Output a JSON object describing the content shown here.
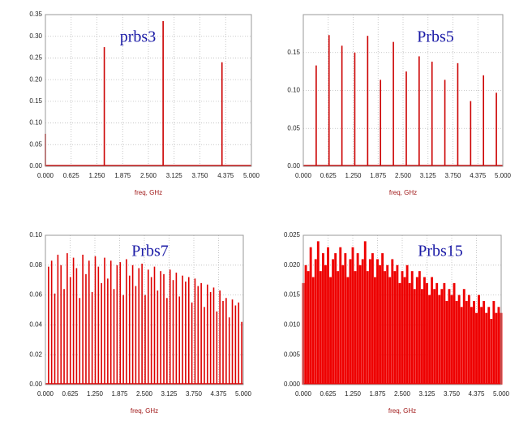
{
  "chart_data": [
    {
      "type": "line",
      "annotation": "prbs3",
      "x_label": "freq, GHz",
      "color": "#cc0000",
      "grid": true,
      "x": [
        0,
        1.429,
        2.857,
        4.286
      ],
      "values": [
        0.075,
        0.275,
        0.335,
        0.24
      ],
      "xlim": [
        0,
        5
      ],
      "ylim": [
        0,
        0.35
      ],
      "xticks": [
        {
          "value": 0,
          "label": "0.000"
        },
        0.625,
        {
          "value": 1.25,
          "label": "1.250"
        },
        1.875,
        {
          "value": 2.5,
          "label": "2.500"
        },
        3.125,
        {
          "value": 3.75,
          "label": "3.750"
        },
        4.375,
        {
          "value": 5,
          "label": "5.000"
        }
      ],
      "yticks": [
        {
          "value": 0,
          "label": "0.00"
        },
        0.05,
        {
          "value": 0.1,
          "label": "0.10"
        },
        0.15,
        {
          "value": 0.2,
          "label": "0.20"
        },
        0.25,
        {
          "value": 0.3,
          "label": "0.30"
        },
        0.35
      ]
    },
    {
      "type": "line",
      "annotation": "Prbs5",
      "x_label": "freq, GHz",
      "color": "#cc0000",
      "grid": true,
      "x": [
        0.323,
        0.645,
        0.968,
        1.29,
        1.613,
        1.935,
        2.258,
        2.581,
        2.903,
        3.226,
        3.548,
        3.871,
        4.194,
        4.516,
        4.839
      ],
      "values": [
        0.133,
        0.173,
        0.159,
        0.15,
        0.172,
        0.114,
        0.164,
        0.125,
        0.145,
        0.138,
        0.114,
        0.136,
        0.086,
        0.12,
        0.097
      ],
      "xlim": [
        0,
        5
      ],
      "ylim": [
        0,
        0.2
      ],
      "xticks": [
        {
          "value": 0,
          "label": "0.000"
        },
        0.625,
        {
          "value": 1.25,
          "label": "1.250"
        },
        1.875,
        {
          "value": 2.5,
          "label": "2.500"
        },
        3.125,
        {
          "value": 3.75,
          "label": "3.750"
        },
        4.375,
        {
          "value": 5,
          "label": "5.000"
        }
      ],
      "yticks": [
        {
          "value": 0,
          "label": "0.00"
        },
        0.05,
        {
          "value": 0.1,
          "label": "0.10"
        },
        0.15
      ]
    },
    {
      "type": "line",
      "annotation": "Prbs7",
      "x_label": "freq, GHz",
      "color": "#dd0000",
      "grid": true,
      "x": [
        0.079,
        0.157,
        0.236,
        0.315,
        0.394,
        0.472,
        0.551,
        0.63,
        0.709,
        0.787,
        0.866,
        0.945,
        1.024,
        1.102,
        1.181,
        1.26,
        1.339,
        1.417,
        1.496,
        1.575,
        1.654,
        1.732,
        1.811,
        1.89,
        1.969,
        2.047,
        2.126,
        2.205,
        2.283,
        2.362,
        2.441,
        2.52,
        2.598,
        2.677,
        2.756,
        2.835,
        2.913,
        2.992,
        3.071,
        3.15,
        3.228,
        3.307,
        3.386,
        3.465,
        3.543,
        3.622,
        3.701,
        3.78,
        3.858,
        3.937,
        4.016,
        4.094,
        4.173,
        4.252,
        4.331,
        4.409,
        4.488,
        4.567,
        4.646,
        4.724,
        4.803,
        4.882,
        4.961
      ],
      "values": [
        0.079,
        0.083,
        0.061,
        0.087,
        0.08,
        0.064,
        0.088,
        0.072,
        0.085,
        0.078,
        0.058,
        0.087,
        0.074,
        0.083,
        0.062,
        0.086,
        0.079,
        0.068,
        0.085,
        0.071,
        0.083,
        0.064,
        0.08,
        0.082,
        0.06,
        0.084,
        0.073,
        0.08,
        0.066,
        0.078,
        0.081,
        0.06,
        0.077,
        0.072,
        0.079,
        0.063,
        0.076,
        0.074,
        0.058,
        0.077,
        0.07,
        0.075,
        0.059,
        0.073,
        0.069,
        0.072,
        0.055,
        0.071,
        0.066,
        0.068,
        0.052,
        0.067,
        0.062,
        0.065,
        0.049,
        0.063,
        0.056,
        0.058,
        0.045,
        0.057,
        0.053,
        0.055,
        0.042
      ],
      "xlim": [
        0,
        5
      ],
      "ylim": [
        0,
        0.1
      ],
      "xticks": [
        {
          "value": 0,
          "label": "0.000"
        },
        0.625,
        {
          "value": 1.25,
          "label": "1.250"
        },
        1.875,
        {
          "value": 2.5,
          "label": "2.500"
        },
        3.125,
        {
          "value": 3.75,
          "label": "3.750"
        },
        4.375,
        {
          "value": 5,
          "label": "5.000"
        }
      ],
      "yticks": [
        {
          "value": 0,
          "label": "0.00"
        },
        0.02,
        0.04,
        0.06,
        0.08,
        {
          "value": 0.1,
          "label": "0.10"
        }
      ]
    },
    {
      "type": "line",
      "annotation": "Prbs15",
      "x_label": "freq, GHz",
      "color": "#ee0000",
      "grid": true,
      "x": [
        0,
        0.0625,
        0.125,
        0.1875,
        0.25,
        0.3125,
        0.375,
        0.4375,
        0.5,
        0.5625,
        0.625,
        0.6875,
        0.75,
        0.8125,
        0.875,
        0.9375,
        1,
        1.0625,
        1.125,
        1.1875,
        1.25,
        1.3125,
        1.375,
        1.4375,
        1.5,
        1.5625,
        1.625,
        1.6875,
        1.75,
        1.8125,
        1.875,
        1.9375,
        2,
        2.0625,
        2.125,
        2.1875,
        2.25,
        2.3125,
        2.375,
        2.4375,
        2.5,
        2.5625,
        2.625,
        2.6875,
        2.75,
        2.8125,
        2.875,
        2.9375,
        3,
        3.0625,
        3.125,
        3.1875,
        3.25,
        3.3125,
        3.375,
        3.4375,
        3.5,
        3.5625,
        3.625,
        3.6875,
        3.75,
        3.8125,
        3.875,
        3.9375,
        4,
        4.0625,
        4.125,
        4.1875,
        4.25,
        4.3125,
        4.375,
        4.4375,
        4.5,
        4.5625,
        4.625,
        4.6875,
        4.75,
        4.8125,
        4.875,
        4.9375,
        5
      ],
      "values": [
        0.017,
        0.02,
        0.019,
        0.023,
        0.018,
        0.021,
        0.024,
        0.019,
        0.022,
        0.02,
        0.023,
        0.018,
        0.021,
        0.022,
        0.019,
        0.023,
        0.02,
        0.022,
        0.018,
        0.021,
        0.023,
        0.019,
        0.022,
        0.02,
        0.021,
        0.024,
        0.019,
        0.021,
        0.022,
        0.018,
        0.021,
        0.02,
        0.022,
        0.019,
        0.02,
        0.018,
        0.021,
        0.019,
        0.02,
        0.017,
        0.019,
        0.018,
        0.02,
        0.017,
        0.019,
        0.016,
        0.018,
        0.019,
        0.016,
        0.018,
        0.017,
        0.015,
        0.018,
        0.016,
        0.017,
        0.015,
        0.016,
        0.017,
        0.014,
        0.016,
        0.015,
        0.017,
        0.014,
        0.015,
        0.013,
        0.016,
        0.014,
        0.015,
        0.013,
        0.014,
        0.012,
        0.015,
        0.013,
        0.014,
        0.012,
        0.013,
        0.011,
        0.014,
        0.012,
        0.013,
        0.012
      ],
      "xlim": [
        0,
        5
      ],
      "ylim": [
        0,
        0.025
      ],
      "xticks": [
        {
          "value": 0,
          "label": "0.000"
        },
        0.625,
        {
          "value": 1.25,
          "label": "1.250"
        },
        1.875,
        {
          "value": 2.5,
          "label": "2.500"
        },
        3.125,
        {
          "value": 3.75,
          "label": "3.750"
        },
        4.375,
        {
          "value": 5,
          "label": "5.000"
        }
      ],
      "yticks": [
        {
          "value": 0,
          "label": "0.000"
        },
        0.005,
        {
          "value": 0.01,
          "label": "0.010"
        },
        0.015,
        {
          "value": 0.02,
          "label": "0.020"
        },
        0.025
      ]
    }
  ]
}
